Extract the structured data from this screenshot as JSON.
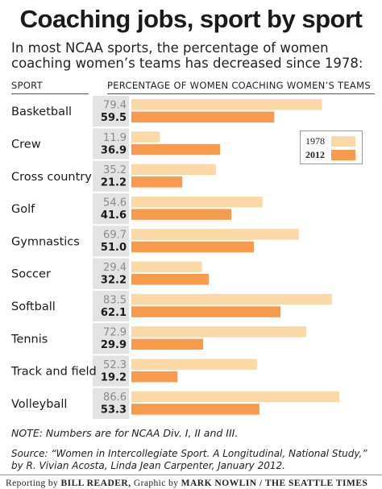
{
  "title": "Coaching jobs, sport by sport",
  "subtitle": "In most NCAA sports, the percentage of women coaching women’s teams has decreased since 1978:",
  "headers": {
    "sport": "SPORT",
    "percentage": "PERCENTAGE OF WOMEN COACHING WOMEN’S TEAMS"
  },
  "legend": {
    "a": "1978",
    "b": "2012"
  },
  "colors": {
    "c1978": "#fbd9a7",
    "c2012": "#f79a4e",
    "shade": "#e3e3e3",
    "label1978": "#8a8a8a",
    "label2012": "#1a1a1a"
  },
  "chart_data": {
    "type": "bar",
    "orientation": "horizontal",
    "categories": [
      "Basketball",
      "Crew",
      "Cross country",
      "Golf",
      "Gymnastics",
      "Soccer",
      "Softball",
      "Tennis",
      "Track and field",
      "Volleyball"
    ],
    "series": [
      {
        "name": "1978",
        "values": [
          79.4,
          11.9,
          35.2,
          54.6,
          69.7,
          29.4,
          83.5,
          72.9,
          52.3,
          86.6
        ]
      },
      {
        "name": "2012",
        "values": [
          59.5,
          36.9,
          21.2,
          41.6,
          51.0,
          32.2,
          62.1,
          29.9,
          19.2,
          53.3
        ]
      }
    ],
    "xlim": [
      0,
      100
    ],
    "legend_position": "top-right"
  },
  "note": "NOTE: Numbers are for NCAA Div. I, II and III.",
  "source": "Source: “Women in Intercollegiate Sport. A Longitudinal, National Study,” by R. Vivian Acosta, Linda Jean Carpenter, January 2012.",
  "credit": {
    "reporting_prefix": "Reporting by",
    "reporter": "BILL READER,",
    "graphic_prefix": "Graphic by",
    "graphic": "MARK NOWLIN / THE SEATTLE TIMES"
  }
}
